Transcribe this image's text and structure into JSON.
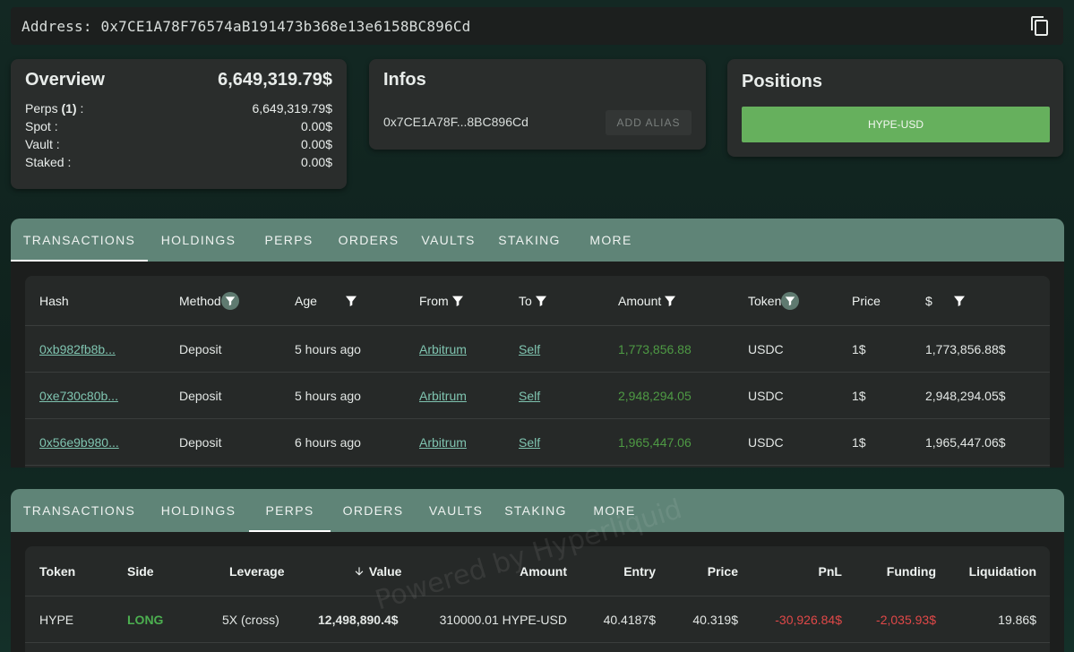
{
  "address": {
    "label": "Address:",
    "value": "0x7CE1A78F76574aB191473b368e13e6158BC896Cd",
    "copy_icon": "copy-icon"
  },
  "overview": {
    "title": "Overview",
    "total": "6,649,319.79$",
    "perps_label": "Perps",
    "perps_count": "(1)",
    "perps_colon": ":",
    "perps_value": "6,649,319.79$",
    "spot_label": "Spot :",
    "spot_value": "0.00$",
    "vault_label": "Vault :",
    "vault_value": "0.00$",
    "staked_label": "Staked :",
    "staked_value": "0.00$"
  },
  "infos": {
    "title": "Infos",
    "short_address": "0x7CE1A78F...8BC896Cd",
    "add_alias": "ADD ALIAS"
  },
  "positions": {
    "title": "Positions",
    "items": [
      "HYPE-USD"
    ]
  },
  "tabs": [
    "TRANSACTIONS",
    "HOLDINGS",
    "PERPS",
    "ORDERS",
    "VAULTS",
    "STAKING",
    "MORE"
  ],
  "transactions": {
    "active_tab": "TRANSACTIONS",
    "headers": {
      "hash": "Hash",
      "method": "Method",
      "age": "Age",
      "from": "From",
      "to": "To",
      "amount": "Amount",
      "token": "Token",
      "price": "Price",
      "usd": "$"
    },
    "rows": [
      {
        "hash": "0xb982fb8b...",
        "method": "Deposit",
        "age": "5 hours ago",
        "from": "Arbitrum",
        "to": "Self",
        "amount": "1,773,856.88",
        "token": "USDC",
        "price": "1$",
        "usd": "1,773,856.88$"
      },
      {
        "hash": "0xe730c80b...",
        "method": "Deposit",
        "age": "5 hours ago",
        "from": "Arbitrum",
        "to": "Self",
        "amount": "2,948,294.05",
        "token": "USDC",
        "price": "1$",
        "usd": "2,948,294.05$"
      },
      {
        "hash": "0x56e9b980...",
        "method": "Deposit",
        "age": "6 hours ago",
        "from": "Arbitrum",
        "to": "Self",
        "amount": "1,965,447.06",
        "token": "USDC",
        "price": "1$",
        "usd": "1,965,447.06$"
      }
    ]
  },
  "perps": {
    "active_tab": "PERPS",
    "headers": {
      "token": "Token",
      "side": "Side",
      "leverage": "Leverage",
      "value": "Value",
      "amount": "Amount",
      "entry": "Entry",
      "price": "Price",
      "pnl": "PnL",
      "funding": "Funding",
      "liquidation": "Liquidation"
    },
    "sort_icon": "arrow-down-icon",
    "rows": [
      {
        "token": "HYPE",
        "side": "LONG",
        "leverage": "5X (cross)",
        "value": "12,498,890.4$",
        "amount": "310000.01 HYPE-USD",
        "entry": "40.4187$",
        "price": "40.319$",
        "pnl": "-30,926.84$",
        "funding": "-2,035.93$",
        "liquidation": "19.86$"
      }
    ]
  },
  "watermark": "Powered by Hyperliquid",
  "colors": {
    "tab_bar": "#5f8477",
    "position_button": "#66b05d",
    "positive": "#4e9a44",
    "negative": "#e04848",
    "link": "#7fc4b0"
  }
}
